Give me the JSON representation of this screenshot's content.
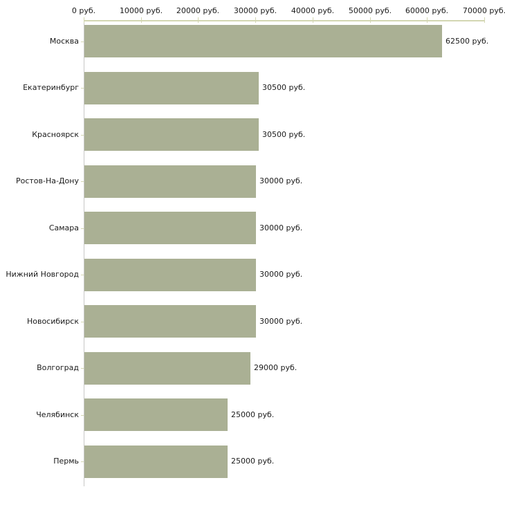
{
  "chart_data": {
    "type": "bar",
    "orientation": "horizontal",
    "title": "",
    "xlabel": "",
    "ylabel": "",
    "categories": [
      "Москва",
      "Екатеринбург",
      "Красноярск",
      "Ростов-На-Дону",
      "Самара",
      "Нижний Новгород",
      "Новосибирск",
      "Волгоград",
      "Челябинск",
      "Пермь"
    ],
    "values": [
      62500,
      30500,
      30500,
      30000,
      30000,
      30000,
      30000,
      29000,
      25000,
      25000
    ],
    "value_labels": [
      "62500 руб.",
      "30500 руб.",
      "30500 руб.",
      "30000 руб.",
      "30000 руб.",
      "30000 руб.",
      "30000 руб.",
      "29000 руб.",
      "25000 руб.",
      "25000 руб."
    ],
    "x_ticks": [
      0,
      10000,
      20000,
      30000,
      40000,
      50000,
      60000,
      70000
    ],
    "x_tick_labels": [
      "0 руб.",
      "10000 руб.",
      "20000 руб.",
      "30000 руб.",
      "40000 руб.",
      "50000 руб.",
      "60000 руб.",
      "70000 руб."
    ],
    "xlim": [
      0,
      70000
    ],
    "grid": false,
    "legend": false,
    "colors": {
      "bar": "#aab094",
      "x_axis": "#d3d6b2",
      "y_axis": "#c8c8c6",
      "category_tick": "#d3d6b2",
      "text": "#1a1a1a",
      "background": "#ffffff"
    }
  }
}
